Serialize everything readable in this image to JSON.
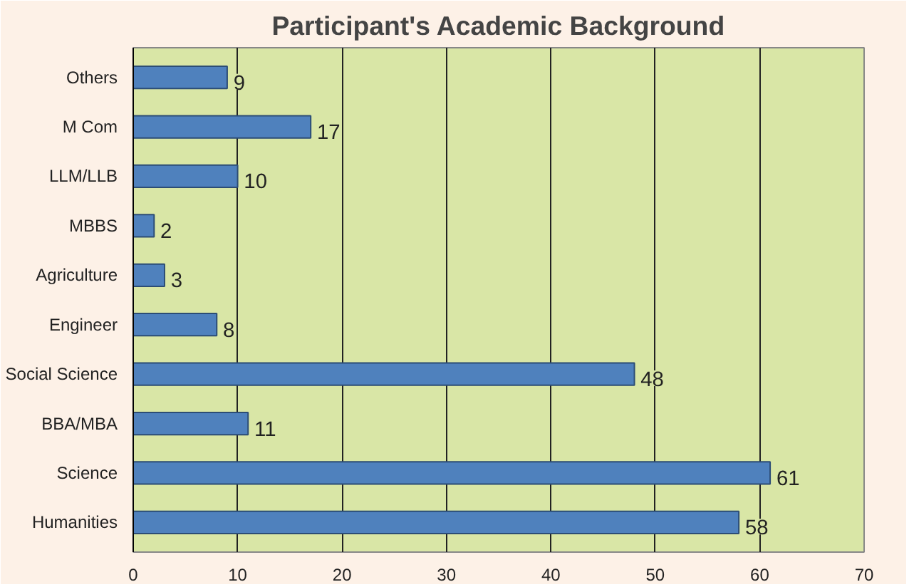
{
  "chart_data": {
    "type": "bar",
    "orientation": "horizontal",
    "title": "Participant's Academic Background",
    "categories": [
      "Others",
      "M Com",
      "LLM/LLB",
      "MBBS",
      "Agriculture",
      "Engineer",
      "Social Science",
      "BBA/MBA",
      "Science",
      "Humanities"
    ],
    "values": [
      9,
      17,
      10,
      2,
      3,
      8,
      48,
      11,
      61,
      58
    ],
    "color": "#4f81bd",
    "xlim": [
      0,
      70
    ],
    "xticks": [
      0,
      10,
      20,
      30,
      40,
      50,
      60,
      70
    ],
    "grid": "x",
    "data_labels": true
  }
}
